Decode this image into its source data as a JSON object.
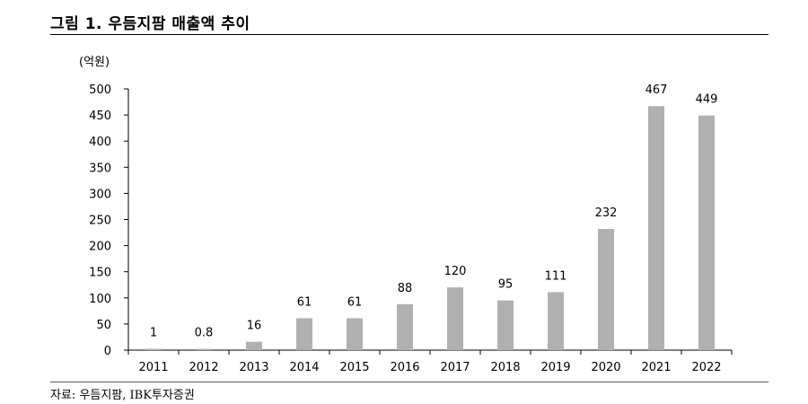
{
  "figure": {
    "title": "그림 1. 우듬지팜 매출액 추이",
    "source": "자료: 우듬지팜, IBK투자증권"
  },
  "chart_data": {
    "type": "bar",
    "unit_label": "(억원)",
    "categories": [
      "2011",
      "2012",
      "2013",
      "2014",
      "2015",
      "2016",
      "2017",
      "2018",
      "2019",
      "2020",
      "2021",
      "2022"
    ],
    "values": [
      1,
      0.8,
      16,
      61,
      61,
      88,
      120,
      95,
      111,
      232,
      467,
      449
    ],
    "data_labels": [
      "1",
      "0.8",
      "16",
      "61",
      "61",
      "88",
      "120",
      "95",
      "111",
      "232",
      "467",
      "449"
    ],
    "ylim": [
      0,
      500
    ],
    "yticks": [
      0,
      50,
      100,
      150,
      200,
      250,
      300,
      350,
      400,
      450,
      500
    ],
    "grid": false,
    "bar_color": "#b0b0b0"
  }
}
